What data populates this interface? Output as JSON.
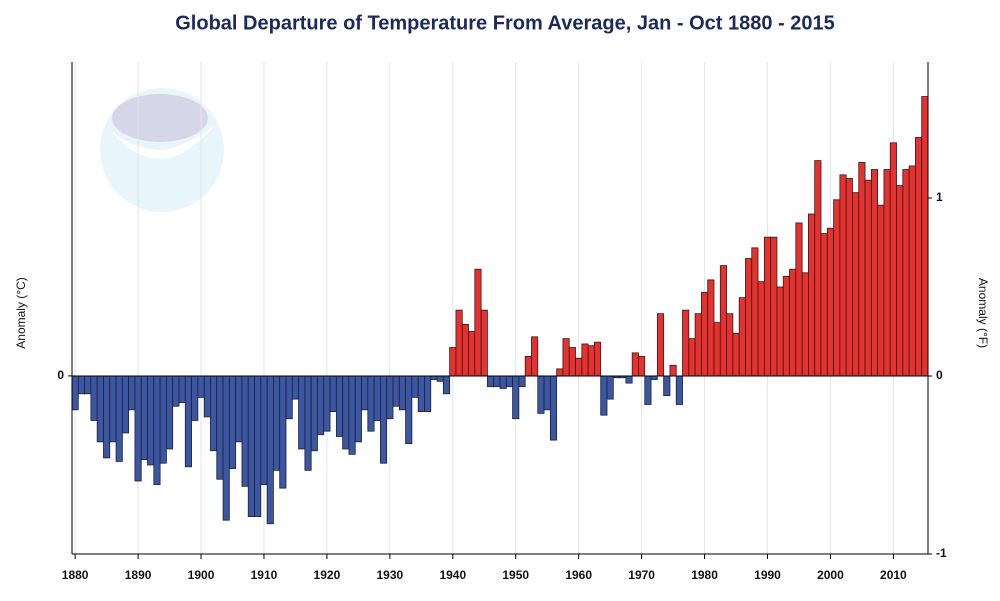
{
  "chart_data": {
    "type": "bar",
    "title": "Global Departure of Temperature From Average, Jan - Oct 1880 - 2015",
    "y_label": "Anomaly (°C)",
    "y2_label": "Anomaly (°F)",
    "x": [
      1880,
      1881,
      1882,
      1883,
      1884,
      1885,
      1886,
      1887,
      1888,
      1889,
      1890,
      1891,
      1892,
      1893,
      1894,
      1895,
      1896,
      1897,
      1898,
      1899,
      1900,
      1901,
      1902,
      1903,
      1904,
      1905,
      1906,
      1907,
      1908,
      1909,
      1910,
      1911,
      1912,
      1913,
      1914,
      1915,
      1916,
      1917,
      1918,
      1919,
      1920,
      1921,
      1922,
      1923,
      1924,
      1925,
      1926,
      1927,
      1928,
      1929,
      1930,
      1931,
      1932,
      1933,
      1934,
      1935,
      1936,
      1937,
      1938,
      1939,
      1940,
      1941,
      1942,
      1943,
      1944,
      1945,
      1946,
      1947,
      1948,
      1949,
      1950,
      1951,
      1952,
      1953,
      1954,
      1955,
      1956,
      1957,
      1958,
      1959,
      1960,
      1961,
      1962,
      1963,
      1964,
      1965,
      1966,
      1967,
      1968,
      1969,
      1970,
      1971,
      1972,
      1973,
      1974,
      1975,
      1976,
      1977,
      1978,
      1979,
      1980,
      1981,
      1982,
      1983,
      1984,
      1985,
      1986,
      1987,
      1988,
      1989,
      1990,
      1991,
      1992,
      1993,
      1994,
      1995,
      1996,
      1997,
      1998,
      1999,
      2000,
      2001,
      2002,
      2003,
      2004,
      2005,
      2006,
      2007,
      2008,
      2009,
      2010,
      2011,
      2012,
      2013,
      2014,
      2015
    ],
    "xlim": [
      1879.5,
      2015.5
    ],
    "xticks": [
      1880,
      1890,
      1900,
      1910,
      1920,
      1930,
      1940,
      1950,
      1960,
      1970,
      1980,
      1990,
      2000,
      2010
    ],
    "ylim": [
      -0.556,
      0.98
    ],
    "yticks": [
      0
    ],
    "y2lim": [
      -1,
      1.764
    ],
    "y2ticks": [
      -1,
      0,
      1
    ],
    "grid": true,
    "colors": {
      "positive": "#e8302f",
      "negative": "#3a56a5"
    },
    "series": [
      {
        "axis": "y2",
        "values": [
          -0.19,
          -0.1,
          -0.1,
          -0.25,
          -0.37,
          -0.46,
          -0.37,
          -0.48,
          -0.32,
          -0.19,
          -0.59,
          -0.47,
          -0.5,
          -0.61,
          -0.49,
          -0.41,
          -0.17,
          -0.15,
          -0.51,
          -0.25,
          -0.12,
          -0.23,
          -0.42,
          -0.58,
          -0.81,
          -0.52,
          -0.37,
          -0.62,
          -0.79,
          -0.79,
          -0.61,
          -0.83,
          -0.53,
          -0.63,
          -0.24,
          -0.13,
          -0.41,
          -0.53,
          -0.42,
          -0.33,
          -0.31,
          -0.2,
          -0.34,
          -0.41,
          -0.44,
          -0.37,
          -0.19,
          -0.31,
          -0.25,
          -0.49,
          -0.24,
          -0.17,
          -0.19,
          -0.38,
          -0.12,
          -0.2,
          -0.2,
          -0.02,
          -0.03,
          -0.1,
          0.16,
          0.37,
          0.29,
          0.25,
          0.6,
          0.37,
          -0.06,
          -0.06,
          -0.07,
          -0.06,
          -0.24,
          -0.06,
          0.11,
          0.22,
          -0.21,
          -0.19,
          -0.36,
          0.04,
          0.21,
          0.16,
          0.1,
          0.18,
          0.17,
          0.19,
          -0.22,
          -0.13,
          -0.01,
          -0.01,
          -0.04,
          0.13,
          0.11,
          -0.16,
          -0.02,
          0.35,
          -0.11,
          0.06,
          -0.16,
          0.37,
          0.21,
          0.35,
          0.47,
          0.54,
          0.3,
          0.62,
          0.35,
          0.24,
          0.44,
          0.66,
          0.72,
          0.53,
          0.78,
          0.78,
          0.5,
          0.56,
          0.6,
          0.86,
          0.58,
          0.91,
          1.21,
          0.8,
          0.83,
          0.99,
          1.13,
          1.11,
          1.03,
          1.2,
          1.1,
          1.16,
          0.96,
          1.16,
          1.31,
          1.07,
          1.16,
          1.18,
          1.34,
          1.57
        ]
      }
    ]
  }
}
